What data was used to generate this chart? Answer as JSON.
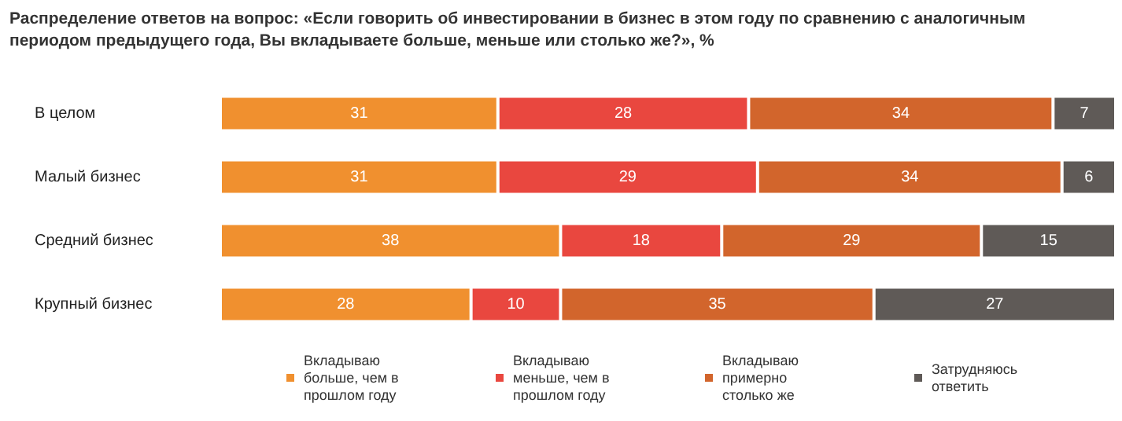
{
  "chart_data": {
    "type": "bar",
    "orientation": "horizontal",
    "stacked": true,
    "data_labels": true,
    "legend": "bottom",
    "title": "Распределение ответов на вопрос: «Если говорить об инвестировании в бизнес в этом году по сравнению с аналогичным периодом предыдущего года, Вы вкладываете больше, меньше или столько же?», %",
    "categories": [
      "В целом",
      "Малый бизнес",
      "Средний бизнес",
      "Крупный бизнес"
    ],
    "series": [
      {
        "name": "Вкладываю больше, чем в прошлом году",
        "color": "#f0902f",
        "values": [
          31,
          31,
          38,
          28
        ]
      },
      {
        "name": "Вкладываю меньше, чем в прошлом году",
        "color": "#e9473f",
        "values": [
          28,
          29,
          18,
          10
        ]
      },
      {
        "name": "Вкладываю примерно столько же",
        "color": "#d2652c",
        "values": [
          34,
          34,
          29,
          35
        ]
      },
      {
        "name": "Затрудняюсь ответить",
        "color": "#5f5a57",
        "values": [
          7,
          6,
          15,
          27
        ]
      }
    ]
  }
}
